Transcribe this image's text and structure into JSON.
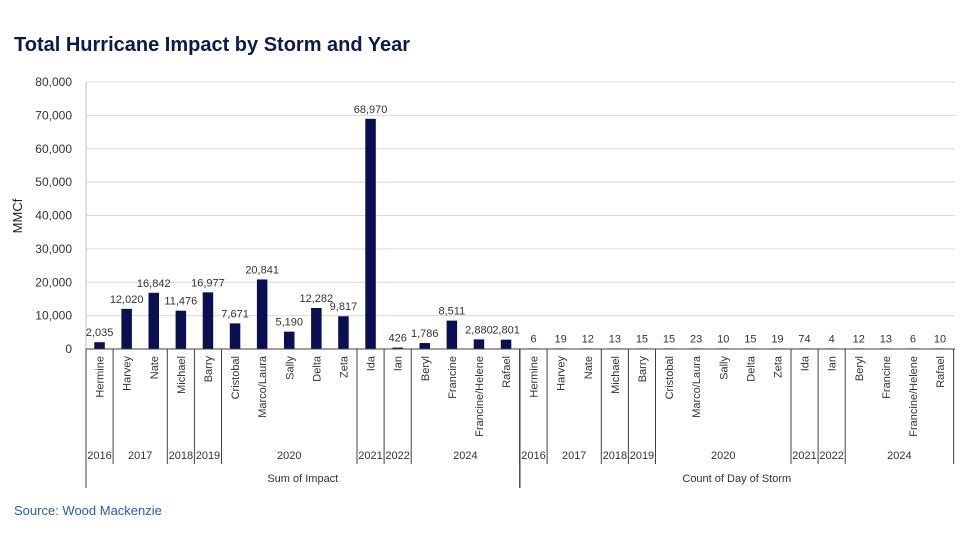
{
  "title": "Total Hurricane Impact by Storm and Year",
  "source": "Source: Wood Mackenzie",
  "colors": {
    "bar": "#0a0f52",
    "grid": "#d9d9d9",
    "axis": "#404040",
    "title": "#0b1a4a",
    "source": "#2d5bb8"
  },
  "chart_data": {
    "type": "bar",
    "ylabel": "MMCf",
    "ylim": [
      0,
      80000
    ],
    "yticks": [
      "0",
      "10,000",
      "20,000",
      "30,000",
      "40,000",
      "50,000",
      "60,000",
      "70,000",
      "80,000"
    ],
    "grid": true,
    "groups": [
      {
        "label": "Sum of Impact",
        "categories": [
          "Hermine",
          "Harvey",
          "Nate",
          "Michael",
          "Barry",
          "Cristobal",
          "Marco/Laura",
          "Sally",
          "Delta",
          "Zeta",
          "Ida",
          "Ian",
          "Beryl",
          "Francine",
          "Francine/Helene",
          "Rafael"
        ],
        "values": [
          2035,
          12020,
          16842,
          11476,
          16977,
          7671,
          20841,
          5190,
          12282,
          9817,
          68970,
          426,
          1786,
          8511,
          2880,
          2801
        ],
        "data_labels": [
          "2,035",
          "12,020",
          "16,842",
          "11,476",
          "16,977",
          "7,671",
          "20,841",
          "5,190",
          "12,282",
          "9,817",
          "68,970",
          "426",
          "1,786",
          "8,511",
          "2,880",
          "2,801"
        ],
        "years": [
          {
            "label": "2016",
            "count": 1
          },
          {
            "label": "2017",
            "count": 2
          },
          {
            "label": "2018",
            "count": 1
          },
          {
            "label": "2019",
            "count": 1
          },
          {
            "label": "2020",
            "count": 5
          },
          {
            "label": "2021",
            "count": 1
          },
          {
            "label": "2022",
            "count": 1
          },
          {
            "label": "2024",
            "count": 4
          }
        ]
      },
      {
        "label": "Count of Day of Storm",
        "categories": [
          "Hermine",
          "Harvey",
          "Nate",
          "Michael",
          "Barry",
          "Cristobal",
          "Marco/Laura",
          "Sally",
          "Delta",
          "Zeta",
          "Ida",
          "Ian",
          "Beryl",
          "Francine",
          "Francine/Helene",
          "Rafael"
        ],
        "values": [
          6,
          19,
          12,
          13,
          15,
          15,
          23,
          10,
          15,
          19,
          74,
          4,
          12,
          13,
          6,
          10
        ],
        "data_labels": [
          "6",
          "19",
          "12",
          "13",
          "15",
          "15",
          "23",
          "10",
          "15",
          "19",
          "74",
          "4",
          "12",
          "13",
          "6",
          "10"
        ],
        "years": [
          {
            "label": "2016",
            "count": 1
          },
          {
            "label": "2017",
            "count": 2
          },
          {
            "label": "2018",
            "count": 1
          },
          {
            "label": "2019",
            "count": 1
          },
          {
            "label": "2020",
            "count": 5
          },
          {
            "label": "2021",
            "count": 1
          },
          {
            "label": "2022",
            "count": 1
          },
          {
            "label": "2024",
            "count": 4
          }
        ]
      }
    ]
  }
}
